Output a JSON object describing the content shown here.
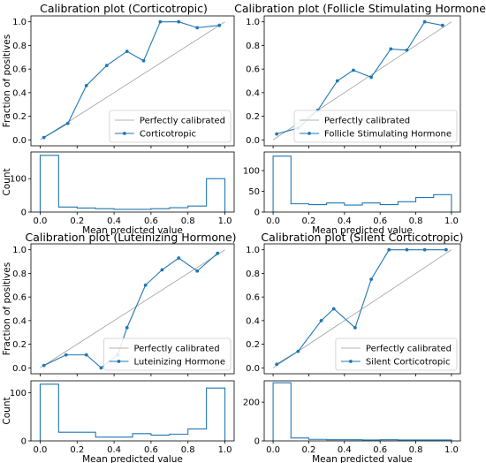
{
  "chart_data": [
    {
      "type": "line",
      "title": "Calibration plot (Corticotropic)",
      "ylabel": "Fraction of positives",
      "xlim": [
        -0.05,
        1.05
      ],
      "ylim": [
        -0.05,
        1.05
      ],
      "xticks": [
        "0.0",
        "0.2",
        "0.4",
        "0.6",
        "0.8",
        "1.0"
      ],
      "yticks": [
        "0.0",
        "0.2",
        "0.4",
        "0.6",
        "0.8",
        "1.0"
      ],
      "legend_position": "lower-right",
      "reference_label": "Perfectly calibrated",
      "series": [
        {
          "name": "Corticotropic",
          "color": "#1f77b4",
          "x": [
            0.02,
            0.15,
            0.25,
            0.36,
            0.47,
            0.56,
            0.65,
            0.75,
            0.85,
            0.97
          ],
          "y": [
            0.02,
            0.14,
            0.46,
            0.63,
            0.75,
            0.67,
            1.0,
            1.0,
            0.95,
            0.97
          ]
        }
      ],
      "hist": {
        "ylabel": "Count",
        "xlabel": "Mean predicted value",
        "ylim": [
          0,
          180
        ],
        "yticks": [
          "0",
          "100"
        ],
        "counts": [
          170,
          15,
          12,
          10,
          8,
          8,
          10,
          13,
          18,
          100
        ]
      }
    },
    {
      "type": "line",
      "title": "Calibration plot (Follicle Stimulating Hormone)",
      "ylabel": "",
      "xlim": [
        -0.05,
        1.05
      ],
      "ylim": [
        -0.05,
        1.05
      ],
      "xticks": [
        "0.0",
        "0.2",
        "0.4",
        "0.6",
        "0.8",
        "1.0"
      ],
      "yticks": [
        "0.0",
        "0.2",
        "0.4",
        "0.6",
        "0.8",
        "1.0"
      ],
      "legend_position": "lower-right",
      "reference_label": "Perfectly calibrated",
      "series": [
        {
          "name": "Follicle Stimulating Hormone",
          "color": "#1f77b4",
          "x": [
            0.02,
            0.14,
            0.25,
            0.36,
            0.45,
            0.55,
            0.66,
            0.75,
            0.85,
            0.95
          ],
          "y": [
            0.05,
            0.1,
            0.25,
            0.5,
            0.59,
            0.53,
            0.77,
            0.76,
            1.0,
            0.97
          ]
        }
      ],
      "hist": {
        "ylabel": "",
        "xlabel": "Mean predicted value",
        "ylim": [
          0,
          145
        ],
        "yticks": [
          "0",
          "50",
          "100"
        ],
        "counts": [
          135,
          20,
          18,
          22,
          17,
          22,
          18,
          25,
          35,
          42
        ]
      }
    },
    {
      "type": "line",
      "title": "Calibration plot (Luteinizing Hormone)",
      "ylabel": "Fraction of positives",
      "xlim": [
        -0.05,
        1.05
      ],
      "ylim": [
        -0.05,
        1.05
      ],
      "xticks": [
        "0.0",
        "0.2",
        "0.4",
        "0.6",
        "0.8",
        "1.0"
      ],
      "yticks": [
        "0.0",
        "0.2",
        "0.4",
        "0.6",
        "0.8",
        "1.0"
      ],
      "legend_position": "lower-right",
      "reference_label": "Perfectly calibrated",
      "series": [
        {
          "name": "Luteinizing Hormone",
          "color": "#1f77b4",
          "x": [
            0.02,
            0.14,
            0.25,
            0.33,
            0.42,
            0.47,
            0.57,
            0.66,
            0.75,
            0.85,
            0.96
          ],
          "y": [
            0.02,
            0.11,
            0.11,
            0.0,
            0.11,
            0.34,
            0.7,
            0.83,
            0.93,
            0.82,
            0.97
          ]
        }
      ],
      "hist": {
        "ylabel": "Count",
        "xlabel": "Mean predicted value",
        "ylim": [
          0,
          125
        ],
        "yticks": [
          "0",
          "100"
        ],
        "counts": [
          118,
          18,
          18,
          8,
          8,
          15,
          12,
          14,
          25,
          110
        ]
      }
    },
    {
      "type": "line",
      "title": "Calibration plot (Silent Corticotropic)",
      "ylabel": "",
      "xlim": [
        -0.05,
        1.05
      ],
      "ylim": [
        -0.05,
        1.05
      ],
      "xticks": [
        "0.0",
        "0.2",
        "0.4",
        "0.6",
        "0.8",
        "1.0"
      ],
      "yticks": [
        "0.0",
        "0.2",
        "0.4",
        "0.6",
        "0.8",
        "1.0"
      ],
      "legend_position": "lower-right",
      "reference_label": "Perfectly calibrated",
      "series": [
        {
          "name": "Silent Corticotropic",
          "color": "#1f77b4",
          "x": [
            0.02,
            0.14,
            0.27,
            0.34,
            0.46,
            0.55,
            0.65,
            0.75,
            0.85,
            0.97
          ],
          "y": [
            0.03,
            0.14,
            0.4,
            0.5,
            0.34,
            0.75,
            1.0,
            1.0,
            1.0,
            1.0
          ]
        }
      ],
      "hist": {
        "ylabel": "",
        "xlabel": "Mean predicted value",
        "ylim": [
          0,
          310
        ],
        "yticks": [
          "0",
          "200"
        ],
        "counts": [
          300,
          15,
          8,
          6,
          6,
          5,
          6,
          5,
          5,
          5
        ]
      }
    }
  ]
}
